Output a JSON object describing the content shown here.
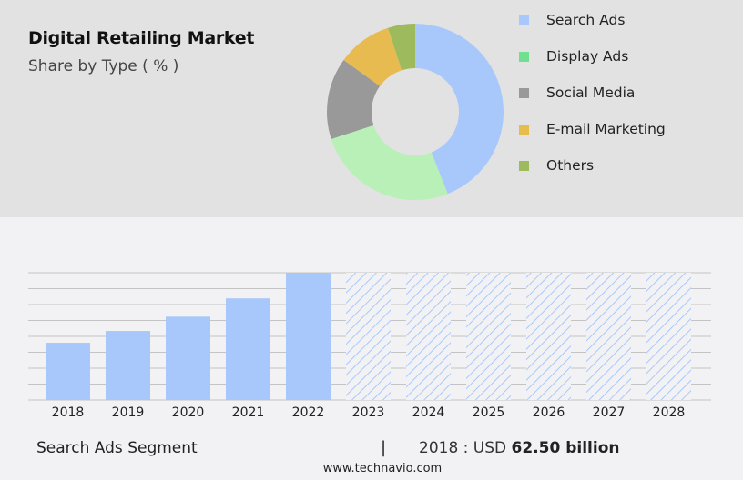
{
  "header": {
    "title": "Digital Retailing Market",
    "subtitle": "Share by Type ( % )"
  },
  "legend": [
    {
      "label": "Search Ads",
      "color": "#a8c8fc"
    },
    {
      "label": "Display Ads",
      "color": "#70e090"
    },
    {
      "label": "Social Media",
      "color": "#999999"
    },
    {
      "label": "E-mail Marketing",
      "color": "#e6bc4c"
    },
    {
      "label": "Others",
      "color": "#9dbb5c"
    }
  ],
  "footer": {
    "segment": "Search Ads Segment",
    "separator": "|",
    "year_label": "2018 : USD",
    "value": "62.50 billion",
    "url": "www.technavio.com"
  },
  "chart_data": [
    {
      "type": "pie",
      "title": "Digital Retailing Market",
      "subtitle": "Share by Type ( % )",
      "donut": true,
      "values_are_estimates": true,
      "categories": [
        "Search Ads",
        "Display Ads",
        "Social Media",
        "E-mail Marketing",
        "Others"
      ],
      "values": [
        44,
        26,
        15,
        10,
        5
      ],
      "colors": [
        "#a8c8fc",
        "#b8f0b8",
        "#999999",
        "#e8bb50",
        "#9dbb5c"
      ],
      "legend_position": "right"
    },
    {
      "type": "bar",
      "title": "Search Ads Segment",
      "categories": [
        "2018",
        "2019",
        "2020",
        "2021",
        "2022",
        "2023",
        "2024",
        "2025",
        "2026",
        "2027",
        "2028"
      ],
      "values": [
        62.5,
        75.4,
        91.0,
        111.0,
        139.0,
        null,
        null,
        null,
        null,
        null,
        null
      ],
      "forecast_years": [
        "2023",
        "2024",
        "2025",
        "2026",
        "2027",
        "2028"
      ],
      "xlabel": "",
      "ylabel": "",
      "grid": true,
      "annotation": "2018 : USD 62.50 billion",
      "bar_color": "#a8c8fc"
    }
  ]
}
